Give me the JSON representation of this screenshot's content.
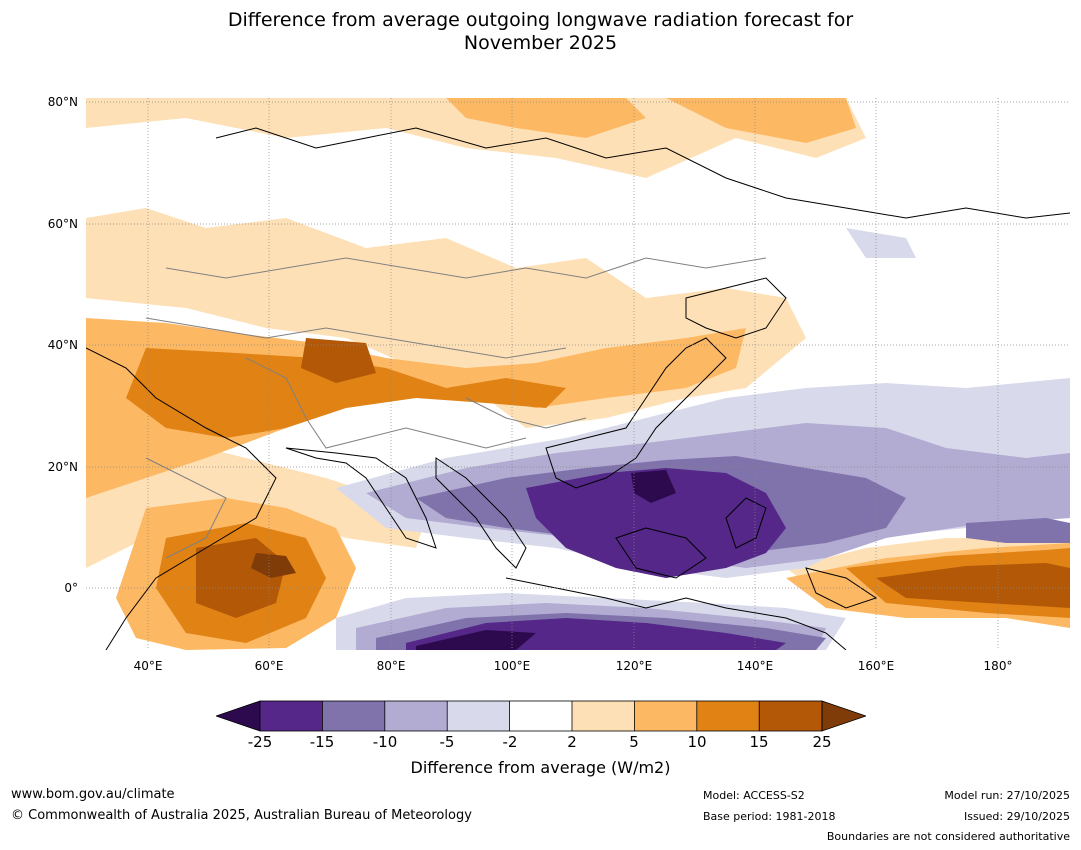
{
  "title_line1": "Difference from average outgoing longwave radiation forecast for",
  "title_line2": "November 2025",
  "lat_labels": [
    "80°N",
    "60°N",
    "40°N",
    "20°N",
    "0°"
  ],
  "lon_labels": [
    "40°E",
    "60°E",
    "80°E",
    "100°E",
    "120°E",
    "140°E",
    "160°E",
    "180°"
  ],
  "colorbar": {
    "ticks": [
      "-25",
      "-15",
      "-10",
      "-5",
      "-2",
      "2",
      "5",
      "10",
      "15",
      "25"
    ],
    "colors": [
      "#2d0a4e",
      "#542788",
      "#8073ac",
      "#b2abd2",
      "#d8daeb",
      "#ffffff",
      "#fee0b6",
      "#fdb863",
      "#e08214",
      "#b35806",
      "#7f3b08"
    ],
    "label": "Difference from average (W/m2)"
  },
  "footer": {
    "url": "www.bom.gov.au/climate",
    "copyright": "© Commonwealth of Australia 2025, Australian Bureau of Meteorology",
    "model": "Model: ACCESS-S2",
    "base_period": "Base period: 1981-2018",
    "model_run": "Model run: 27/10/2025",
    "issued": "Issued: 29/10/2025",
    "disclaimer": "Boundaries are not considered authoritative"
  }
}
